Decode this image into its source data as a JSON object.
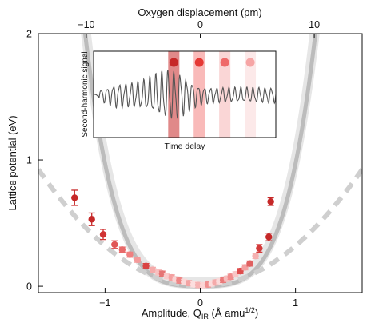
{
  "chart_data": [
    {
      "type": "scatter",
      "title": "",
      "xlabel": "Amplitude, Q",
      "xlabel_sub": "IR",
      "xlabel_unit_pre": " (Å amu",
      "xlabel_unit_sup": "1/2",
      "xlabel_unit_post": ")",
      "ylabel": "Lattice potential (eV)",
      "x2label": "Oxygen displacement (pm)",
      "xlim": [
        -1.7,
        1.7
      ],
      "ylim": [
        -0.05,
        2.0
      ],
      "x2lim": [
        -14.2,
        14.2
      ],
      "xticks": [
        -1,
        0,
        1
      ],
      "xtick_labels": [
        "−1",
        "0",
        "1"
      ],
      "yticks": [
        0,
        1,
        2
      ],
      "ytick_labels": [
        "0",
        "1",
        "2"
      ],
      "x2ticks": [
        -10,
        0,
        10
      ],
      "x2tick_labels": [
        "−10",
        "0",
        "10"
      ],
      "grid": false,
      "fit_band": {
        "color": "#c8c8c8",
        "coefficients_quadratic_quartic": [
          0.11,
          0.86
        ],
        "band_half_width_eV": 0.07
      },
      "harmonic_reference_dashed": {
        "color": "#cfcfcf",
        "coefficient_quadratic": 0.32
      },
      "points": [
        {
          "x": -1.32,
          "y": 0.7,
          "err": 0.06,
          "color": "#c62828"
        },
        {
          "x": -1.14,
          "y": 0.53,
          "err": 0.05,
          "color": "#c62828"
        },
        {
          "x": -1.02,
          "y": 0.41,
          "err": 0.04,
          "color": "#d03333"
        },
        {
          "x": -0.9,
          "y": 0.33,
          "err": 0.03,
          "color": "#e05555"
        },
        {
          "x": -0.82,
          "y": 0.29,
          "err": 0.02,
          "color": "#e86a6a"
        },
        {
          "x": -0.74,
          "y": 0.25,
          "err": 0.02,
          "color": "#f08080"
        },
        {
          "x": -0.66,
          "y": 0.21,
          "err": 0.02,
          "color": "#f49a9a"
        },
        {
          "x": -0.57,
          "y": 0.16,
          "err": 0.02,
          "color": "#d94444"
        },
        {
          "x": -0.5,
          "y": 0.13,
          "err": 0.02,
          "color": "#f5aaaa"
        },
        {
          "x": -0.44,
          "y": 0.11,
          "err": 0.02,
          "color": "#f8c0c0"
        },
        {
          "x": -0.4,
          "y": 0.1,
          "err": 0.02,
          "color": "#e57373"
        },
        {
          "x": -0.35,
          "y": 0.08,
          "err": 0.02,
          "color": "#f9caca"
        },
        {
          "x": -0.3,
          "y": 0.07,
          "err": 0.02,
          "color": "#f4a0a0"
        },
        {
          "x": -0.26,
          "y": 0.055,
          "err": 0.02,
          "color": "#fad2d2"
        },
        {
          "x": -0.22,
          "y": 0.045,
          "err": 0.02,
          "color": "#ee8585"
        },
        {
          "x": -0.17,
          "y": 0.035,
          "err": 0.02,
          "color": "#fbd9d9"
        },
        {
          "x": -0.12,
          "y": 0.025,
          "err": 0.02,
          "color": "#f3a3a3"
        },
        {
          "x": -0.07,
          "y": 0.015,
          "err": 0.02,
          "color": "#fcdede"
        },
        {
          "x": -0.02,
          "y": 0.01,
          "err": 0.02,
          "color": "#f6b3b3"
        },
        {
          "x": 0.03,
          "y": 0.008,
          "err": 0.02,
          "color": "#fbd5d5"
        },
        {
          "x": 0.08,
          "y": 0.014,
          "err": 0.02,
          "color": "#f09090"
        },
        {
          "x": 0.12,
          "y": 0.022,
          "err": 0.02,
          "color": "#fcdcdc"
        },
        {
          "x": 0.16,
          "y": 0.03,
          "err": 0.02,
          "color": "#f5aaaa"
        },
        {
          "x": 0.2,
          "y": 0.04,
          "err": 0.02,
          "color": "#fadada"
        },
        {
          "x": 0.24,
          "y": 0.05,
          "err": 0.02,
          "color": "#ea7a7a"
        },
        {
          "x": 0.28,
          "y": 0.06,
          "err": 0.02,
          "color": "#f7bcbc"
        },
        {
          "x": 0.32,
          "y": 0.075,
          "err": 0.02,
          "color": "#f18c8c"
        },
        {
          "x": 0.37,
          "y": 0.095,
          "err": 0.02,
          "color": "#f8c6c6"
        },
        {
          "x": 0.42,
          "y": 0.12,
          "err": 0.02,
          "color": "#de4c4c"
        },
        {
          "x": 0.47,
          "y": 0.15,
          "err": 0.02,
          "color": "#f3a0a0"
        },
        {
          "x": 0.52,
          "y": 0.18,
          "err": 0.02,
          "color": "#e06060"
        },
        {
          "x": 0.58,
          "y": 0.24,
          "err": 0.02,
          "color": "#f5b0b0"
        },
        {
          "x": 0.62,
          "y": 0.3,
          "err": 0.03,
          "color": "#d33a3a"
        },
        {
          "x": 0.72,
          "y": 0.39,
          "err": 0.03,
          "color": "#c62828"
        },
        {
          "x": 0.74,
          "y": 0.67,
          "err": 0.03,
          "color": "#c62828"
        }
      ]
    },
    {
      "type": "line",
      "title": "",
      "xlabel": "Time delay",
      "ylabel": "Second-harmonic signal",
      "grid": false,
      "trace_color": "#555555",
      "delay_markers": [
        {
          "time": 0.44,
          "color": "#c62828",
          "band_color": "#c62828",
          "band_opacity": 0.55
        },
        {
          "time": 0.58,
          "color": "#e53935",
          "band_color": "#ef5350",
          "band_opacity": 0.4
        },
        {
          "time": 0.72,
          "color": "#ef6a6a",
          "band_color": "#ef8080",
          "band_opacity": 0.32
        },
        {
          "time": 0.86,
          "color": "#f6a5a5",
          "band_color": "#f6b0b0",
          "band_opacity": 0.28
        }
      ]
    }
  ]
}
